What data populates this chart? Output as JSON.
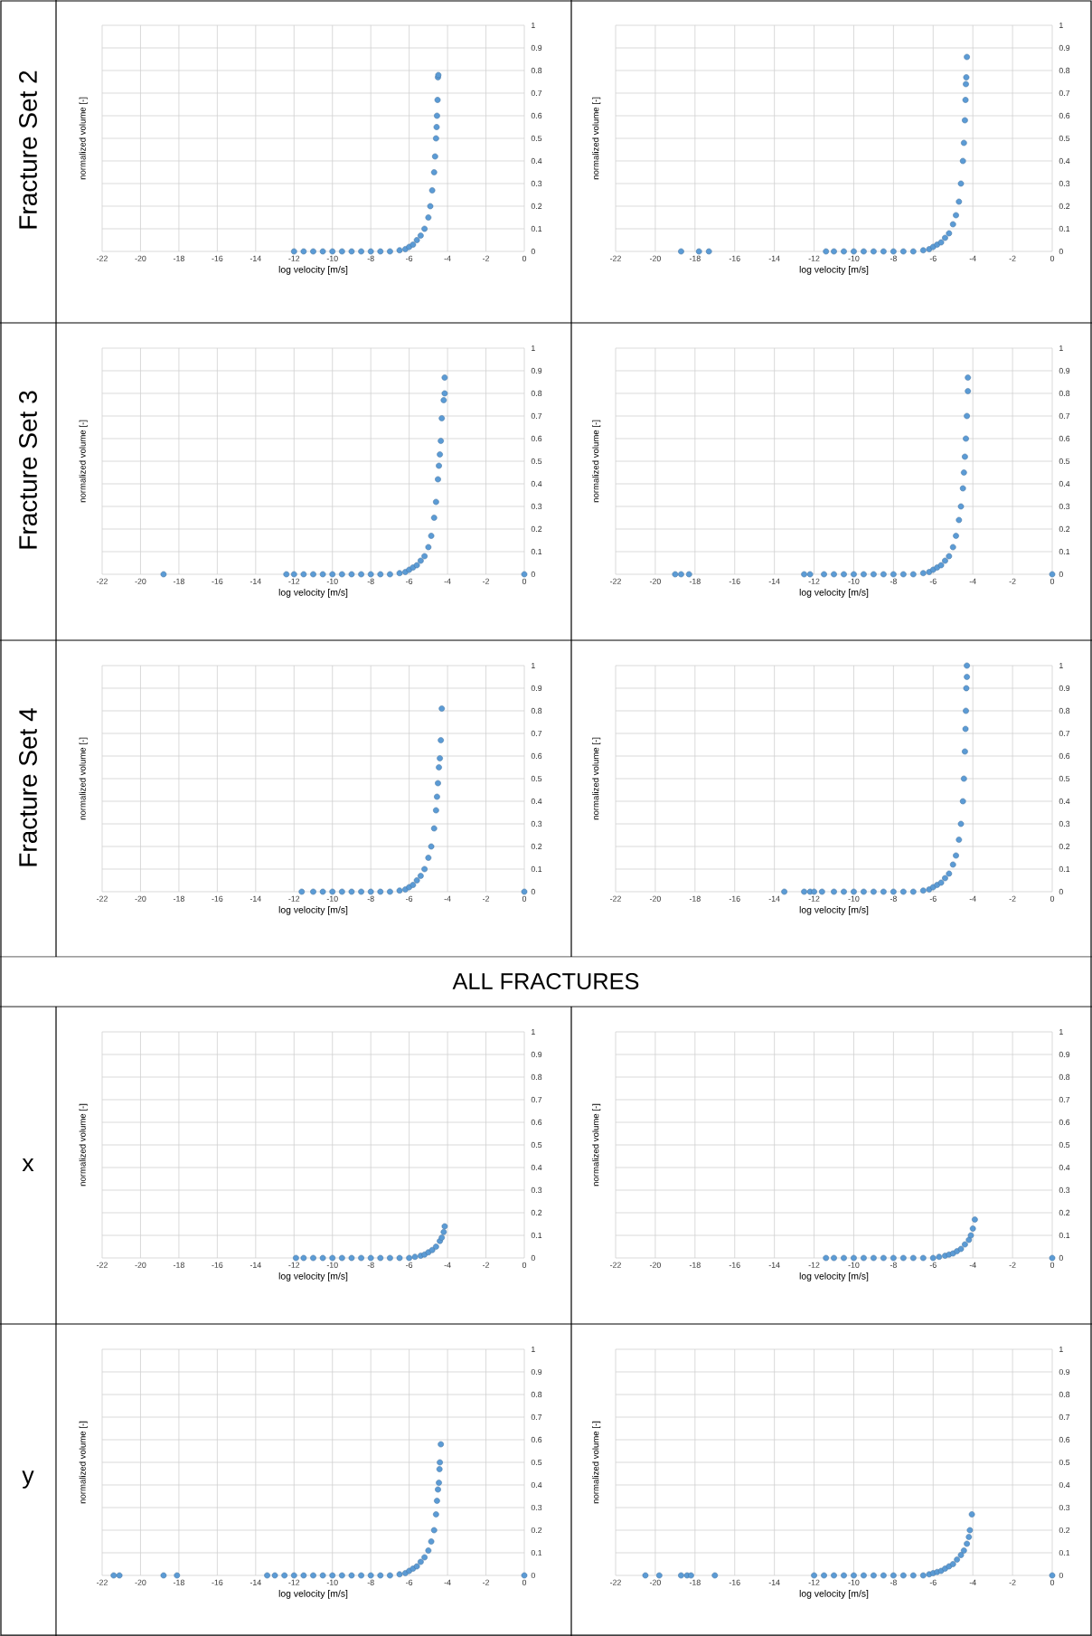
{
  "chart_data": [
    {
      "type": "scatter",
      "annotations": [
        "Fracture Set 2"
      ],
      "xlabel": "log velocity [m/s]",
      "ylabel": "normalized volume [-]",
      "color": "#5b9bd5",
      "marker": "circle",
      "grid": true,
      "xlim": [
        -22,
        0
      ],
      "ylim": [
        0,
        1
      ],
      "xticks": [
        -22,
        -20,
        -18,
        -16,
        -14,
        -12,
        -10,
        -8,
        -6,
        -4,
        -2,
        0
      ],
      "yticks": [
        0,
        0.1,
        0.2,
        0.3,
        0.4,
        0.5,
        0.6,
        0.7,
        0.8,
        0.9,
        1
      ],
      "x": [
        -12,
        -11.5,
        -11,
        -10.5,
        -10,
        -9.5,
        -9,
        -8.5,
        -8,
        -7.5,
        -7,
        -6.5,
        -6.2,
        -6,
        -5.8,
        -5.6,
        -5.4,
        -5.2,
        -5.0,
        -4.9,
        -4.8,
        -4.7,
        -4.65,
        -4.6,
        -4.57,
        -4.55,
        -4.52,
        -4.5,
        -4.48
      ],
      "values": [
        0,
        0,
        0,
        0,
        0,
        0,
        0,
        0,
        0,
        0,
        0,
        0.005,
        0.01,
        0.02,
        0.03,
        0.05,
        0.07,
        0.1,
        0.15,
        0.2,
        0.27,
        0.35,
        0.42,
        0.5,
        0.55,
        0.6,
        0.67,
        0.77,
        0.78
      ]
    },
    {
      "type": "scatter",
      "xlabel": "log velocity [m/s]",
      "ylabel": "normalized volume [-]",
      "color": "#5b9bd5",
      "marker": "circle",
      "grid": true,
      "xlim": [
        -22,
        0
      ],
      "ylim": [
        0,
        1
      ],
      "xticks": [
        -22,
        -20,
        -18,
        -16,
        -14,
        -12,
        -10,
        -8,
        -6,
        -4,
        -2,
        0
      ],
      "yticks": [
        0,
        0.1,
        0.2,
        0.3,
        0.4,
        0.5,
        0.6,
        0.7,
        0.8,
        0.9,
        1
      ],
      "x": [
        -18.7,
        -17.8,
        -17.3,
        -11.4,
        -11,
        -10.5,
        -10,
        -9.5,
        -9,
        -8.5,
        -8,
        -7.5,
        -7,
        -6.5,
        -6.2,
        -6,
        -5.8,
        -5.6,
        -5.4,
        -5.2,
        -5.0,
        -4.85,
        -4.7,
        -4.6,
        -4.5,
        -4.45,
        -4.4,
        -4.37,
        -4.35,
        -4.33,
        -4.3
      ],
      "values": [
        0,
        0,
        0,
        0,
        0,
        0,
        0,
        0,
        0,
        0,
        0,
        0,
        0,
        0.005,
        0.01,
        0.02,
        0.03,
        0.04,
        0.06,
        0.08,
        0.12,
        0.16,
        0.22,
        0.3,
        0.4,
        0.48,
        0.58,
        0.67,
        0.74,
        0.77,
        0.86
      ]
    },
    {
      "type": "scatter",
      "annotations": [
        "Fracture Set 3"
      ],
      "xlabel": "log velocity [m/s]",
      "ylabel": "normalized volume [-]",
      "color": "#5b9bd5",
      "marker": "circle",
      "grid": true,
      "xlim": [
        -22,
        0
      ],
      "ylim": [
        0,
        1
      ],
      "xticks": [
        -22,
        -20,
        -18,
        -16,
        -14,
        -12,
        -10,
        -8,
        -6,
        -4,
        -2,
        0
      ],
      "yticks": [
        0,
        0.1,
        0.2,
        0.3,
        0.4,
        0.5,
        0.6,
        0.7,
        0.8,
        0.9,
        1
      ],
      "x": [
        -18.8,
        -12.4,
        -12,
        -11.5,
        -11,
        -10.5,
        -10,
        -9.5,
        -9,
        -8.5,
        -8,
        -7.5,
        -7,
        -6.5,
        -6.2,
        -6,
        -5.8,
        -5.6,
        -5.4,
        -5.2,
        -5.0,
        -4.85,
        -4.7,
        -4.6,
        -4.5,
        -4.45,
        -4.4,
        -4.35,
        -4.3,
        -4.2,
        -4.15,
        -4.15,
        0
      ],
      "values": [
        0,
        0,
        0,
        0,
        0,
        0,
        0,
        0,
        0,
        0,
        0,
        0,
        0,
        0.005,
        0.01,
        0.02,
        0.03,
        0.04,
        0.06,
        0.08,
        0.12,
        0.17,
        0.25,
        0.32,
        0.42,
        0.48,
        0.53,
        0.59,
        0.69,
        0.77,
        0.8,
        0.87,
        0
      ]
    },
    {
      "type": "scatter",
      "xlabel": "log velocity [m/s]",
      "ylabel": "normalized volume [-]",
      "color": "#5b9bd5",
      "marker": "circle",
      "grid": true,
      "xlim": [
        -22,
        0
      ],
      "ylim": [
        0,
        1
      ],
      "xticks": [
        -22,
        -20,
        -18,
        -16,
        -14,
        -12,
        -10,
        -8,
        -6,
        -4,
        -2,
        0
      ],
      "yticks": [
        0,
        0.1,
        0.2,
        0.3,
        0.4,
        0.5,
        0.6,
        0.7,
        0.8,
        0.9,
        1
      ],
      "x": [
        -19,
        -18.7,
        -18.3,
        -12.5,
        -12.2,
        -11.5,
        -11,
        -10.5,
        -10,
        -9.5,
        -9,
        -8.5,
        -8,
        -7.5,
        -7,
        -6.5,
        -6.2,
        -6,
        -5.8,
        -5.6,
        -5.4,
        -5.2,
        -5.0,
        -4.85,
        -4.7,
        -4.6,
        -4.5,
        -4.45,
        -4.4,
        -4.35,
        -4.3,
        -4.25,
        -4.25,
        0
      ],
      "values": [
        0,
        0,
        0,
        0,
        0,
        0,
        0,
        0,
        0,
        0,
        0,
        0,
        0,
        0,
        0,
        0.005,
        0.01,
        0.02,
        0.03,
        0.04,
        0.06,
        0.08,
        0.12,
        0.17,
        0.24,
        0.3,
        0.38,
        0.45,
        0.52,
        0.6,
        0.7,
        0.81,
        0.87,
        0
      ]
    },
    {
      "type": "scatter",
      "annotations": [
        "Fracture Set 4"
      ],
      "xlabel": "log velocity [m/s]",
      "ylabel": "normalized volume [-]",
      "color": "#5b9bd5",
      "marker": "circle",
      "grid": true,
      "xlim": [
        -22,
        0
      ],
      "ylim": [
        0,
        1
      ],
      "xticks": [
        -22,
        -20,
        -18,
        -16,
        -14,
        -12,
        -10,
        -8,
        -6,
        -4,
        -2,
        0
      ],
      "yticks": [
        0,
        0.1,
        0.2,
        0.3,
        0.4,
        0.5,
        0.6,
        0.7,
        0.8,
        0.9,
        1
      ],
      "x": [
        -11.6,
        -11,
        -10.5,
        -10,
        -9.5,
        -9,
        -8.5,
        -8,
        -7.5,
        -7,
        -6.5,
        -6.2,
        -6,
        -5.8,
        -5.6,
        -5.4,
        -5.2,
        -5.0,
        -4.85,
        -4.7,
        -4.6,
        -4.55,
        -4.5,
        -4.45,
        -4.4,
        -4.35,
        -4.3,
        0
      ],
      "values": [
        0,
        0,
        0,
        0,
        0,
        0,
        0,
        0,
        0,
        0,
        0.005,
        0.01,
        0.02,
        0.03,
        0.05,
        0.07,
        0.1,
        0.15,
        0.2,
        0.28,
        0.36,
        0.42,
        0.48,
        0.55,
        0.59,
        0.67,
        0.81,
        0
      ]
    },
    {
      "type": "scatter",
      "xlabel": "log velocity [m/s]",
      "ylabel": "normalized volume [-]",
      "color": "#5b9bd5",
      "marker": "circle",
      "grid": true,
      "xlim": [
        -22,
        0
      ],
      "ylim": [
        0,
        1
      ],
      "xticks": [
        -22,
        -20,
        -18,
        -16,
        -14,
        -12,
        -10,
        -8,
        -6,
        -4,
        -2,
        0
      ],
      "yticks": [
        0,
        0.1,
        0.2,
        0.3,
        0.4,
        0.5,
        0.6,
        0.7,
        0.8,
        0.9,
        1
      ],
      "x": [
        -13.5,
        -12.5,
        -12.2,
        -12,
        -11.6,
        -11,
        -10.5,
        -10,
        -9.5,
        -9,
        -8.5,
        -8,
        -7.5,
        -7,
        -6.5,
        -6.2,
        -6,
        -5.8,
        -5.6,
        -5.4,
        -5.2,
        -5.0,
        -4.85,
        -4.7,
        -4.6,
        -4.5,
        -4.45,
        -4.4,
        -4.37,
        -4.35,
        -4.33,
        -4.3,
        -4.3
      ],
      "values": [
        0,
        0,
        0,
        0,
        0,
        0,
        0,
        0,
        0,
        0,
        0,
        0,
        0,
        0,
        0.005,
        0.01,
        0.02,
        0.03,
        0.04,
        0.06,
        0.08,
        0.12,
        0.16,
        0.23,
        0.3,
        0.4,
        0.5,
        0.62,
        0.72,
        0.8,
        0.9,
        0.95,
        1.0
      ]
    },
    {
      "type": "scatter",
      "annotations": [
        "ALL FRACTURES",
        "x"
      ],
      "xlabel": "log velocity [m/s]",
      "ylabel": "normalized volume [-]",
      "color": "#5b9bd5",
      "marker": "circle",
      "grid": true,
      "xlim": [
        -22,
        0
      ],
      "ylim": [
        0,
        1
      ],
      "xticks": [
        -22,
        -20,
        -18,
        -16,
        -14,
        -12,
        -10,
        -8,
        -6,
        -4,
        -2,
        0
      ],
      "yticks": [
        0,
        0.1,
        0.2,
        0.3,
        0.4,
        0.5,
        0.6,
        0.7,
        0.8,
        0.9,
        1
      ],
      "x": [
        -11.9,
        -11.5,
        -11,
        -10.5,
        -10,
        -9.5,
        -9,
        -8.5,
        -8,
        -7.5,
        -7,
        -6.5,
        -6,
        -5.7,
        -5.4,
        -5.2,
        -5.0,
        -4.8,
        -4.6,
        -4.4,
        -4.3,
        -4.2,
        -4.15
      ],
      "values": [
        0,
        0,
        0,
        0,
        0,
        0,
        0,
        0,
        0,
        0,
        0,
        0,
        0,
        0.005,
        0.01,
        0.015,
        0.025,
        0.035,
        0.05,
        0.075,
        0.09,
        0.115,
        0.14
      ]
    },
    {
      "type": "scatter",
      "xlabel": "log velocity [m/s]",
      "ylabel": "normalized volume [-]",
      "color": "#5b9bd5",
      "marker": "circle",
      "grid": true,
      "xlim": [
        -22,
        0
      ],
      "ylim": [
        0,
        1
      ],
      "xticks": [
        -22,
        -20,
        -18,
        -16,
        -14,
        -12,
        -10,
        -8,
        -6,
        -4,
        -2,
        0
      ],
      "yticks": [
        0,
        0.1,
        0.2,
        0.3,
        0.4,
        0.5,
        0.6,
        0.7,
        0.8,
        0.9,
        1
      ],
      "x": [
        -11.4,
        -11,
        -10.5,
        -10,
        -9.5,
        -9,
        -8.5,
        -8,
        -7.5,
        -7,
        -6.5,
        -6,
        -5.7,
        -5.4,
        -5.2,
        -5.0,
        -4.8,
        -4.6,
        -4.4,
        -4.2,
        -4.1,
        -4.0,
        -3.9,
        0
      ],
      "values": [
        0,
        0,
        0,
        0,
        0,
        0,
        0,
        0,
        0,
        0,
        0,
        0,
        0.005,
        0.01,
        0.015,
        0.02,
        0.03,
        0.04,
        0.06,
        0.08,
        0.1,
        0.13,
        0.17,
        0
      ]
    },
    {
      "type": "scatter",
      "annotations": [
        "y"
      ],
      "xlabel": "log velocity [m/s]",
      "ylabel": "normalized volume [-]",
      "color": "#5b9bd5",
      "marker": "circle",
      "grid": true,
      "xlim": [
        -22,
        0
      ],
      "ylim": [
        0,
        1
      ],
      "xticks": [
        -22,
        -20,
        -18,
        -16,
        -14,
        -12,
        -10,
        -8,
        -6,
        -4,
        -2,
        0
      ],
      "yticks": [
        0,
        0.1,
        0.2,
        0.3,
        0.4,
        0.5,
        0.6,
        0.7,
        0.8,
        0.9,
        1
      ],
      "x": [
        -21.4,
        -21.1,
        -18.8,
        -18.1,
        -13.4,
        -13,
        -12.5,
        -12,
        -11.5,
        -11,
        -10.5,
        -10,
        -9.5,
        -9,
        -8.5,
        -8,
        -7.5,
        -7,
        -6.5,
        -6.2,
        -6,
        -5.8,
        -5.6,
        -5.4,
        -5.2,
        -5.0,
        -4.85,
        -4.7,
        -4.6,
        -4.55,
        -4.5,
        -4.45,
        -4.42,
        -4.4,
        -4.35,
        0
      ],
      "values": [
        0,
        0,
        0,
        0,
        0,
        0,
        0,
        0,
        0,
        0,
        0,
        0,
        0,
        0,
        0,
        0,
        0,
        0,
        0.005,
        0.01,
        0.02,
        0.03,
        0.04,
        0.06,
        0.08,
        0.11,
        0.15,
        0.2,
        0.27,
        0.33,
        0.38,
        0.41,
        0.47,
        0.5,
        0.58,
        0
      ]
    },
    {
      "type": "scatter",
      "xlabel": "log velocity [m/s]",
      "ylabel": "normalized volume [-]",
      "color": "#5b9bd5",
      "marker": "circle",
      "grid": true,
      "xlim": [
        -22,
        0
      ],
      "ylim": [
        0,
        1
      ],
      "xticks": [
        -22,
        -20,
        -18,
        -16,
        -14,
        -12,
        -10,
        -8,
        -6,
        -4,
        -2,
        0
      ],
      "yticks": [
        0,
        0.1,
        0.2,
        0.3,
        0.4,
        0.5,
        0.6,
        0.7,
        0.8,
        0.9,
        1
      ],
      "x": [
        -20.5,
        -19.8,
        -18.7,
        -18.4,
        -18.2,
        -17,
        -12,
        -11.5,
        -11,
        -10.5,
        -10,
        -9.5,
        -9,
        -8.5,
        -8,
        -7.5,
        -7,
        -6.5,
        -6.2,
        -6,
        -5.8,
        -5.6,
        -5.4,
        -5.2,
        -5.0,
        -4.8,
        -4.6,
        -4.45,
        -4.3,
        -4.2,
        -4.15,
        -4.05,
        0
      ],
      "values": [
        0,
        0,
        0,
        0,
        0,
        0,
        0,
        0,
        0,
        0,
        0,
        0,
        0,
        0,
        0,
        0,
        0,
        0,
        0.005,
        0.01,
        0.015,
        0.02,
        0.03,
        0.04,
        0.05,
        0.07,
        0.09,
        0.11,
        0.14,
        0.17,
        0.2,
        0.27,
        0
      ]
    }
  ]
}
